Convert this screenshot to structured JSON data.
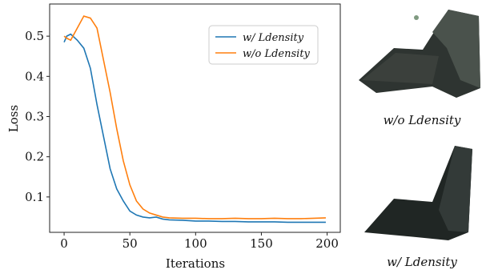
{
  "chart_data": {
    "type": "line",
    "xlabel": "Iterations",
    "ylabel": "Loss",
    "x": [
      0,
      2,
      5,
      10,
      15,
      20,
      25,
      30,
      35,
      40,
      45,
      50,
      55,
      60,
      65,
      70,
      75,
      80,
      90,
      100,
      110,
      120,
      130,
      140,
      150,
      160,
      170,
      180,
      190,
      199
    ],
    "series": [
      {
        "name": "w/ Ldensity",
        "color": "#1f77b4",
        "values": [
          0.485,
          0.5,
          0.505,
          0.49,
          0.47,
          0.42,
          0.33,
          0.25,
          0.17,
          0.12,
          0.09,
          0.065,
          0.055,
          0.05,
          0.048,
          0.05,
          0.045,
          0.043,
          0.042,
          0.04,
          0.04,
          0.039,
          0.039,
          0.038,
          0.038,
          0.038,
          0.037,
          0.037,
          0.037,
          0.037
        ]
      },
      {
        "name": "w/o Ldensity",
        "color": "#ff7f0e",
        "values": [
          0.5,
          0.495,
          0.49,
          0.52,
          0.55,
          0.545,
          0.52,
          0.44,
          0.36,
          0.27,
          0.19,
          0.13,
          0.09,
          0.07,
          0.06,
          0.055,
          0.05,
          0.048,
          0.047,
          0.047,
          0.046,
          0.046,
          0.047,
          0.046,
          0.046,
          0.047,
          0.046,
          0.046,
          0.047,
          0.048
        ]
      }
    ],
    "xlim": [
      -11,
      210
    ],
    "ylim": [
      0.012,
      0.58
    ],
    "xticks": [
      0,
      50,
      100,
      150,
      200
    ],
    "yticks": [
      0.1,
      0.2,
      0.3,
      0.4,
      0.5
    ],
    "legend": "upper right"
  },
  "renders": {
    "top_caption": "w/o Ldensity",
    "bottom_caption": "w/ Ldensity"
  }
}
